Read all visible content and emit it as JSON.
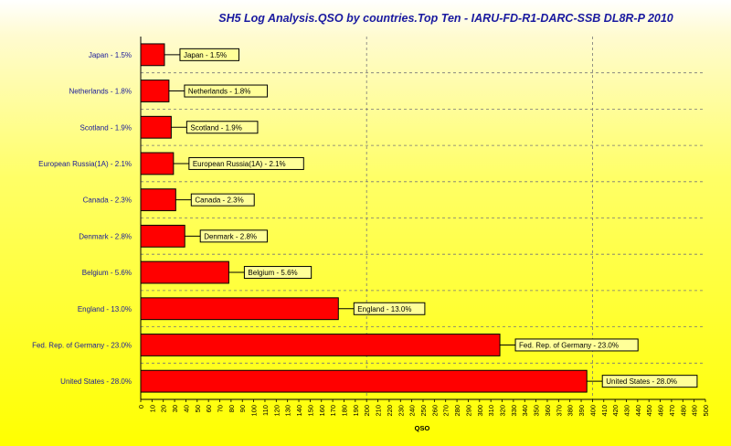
{
  "chart_data": {
    "type": "bar",
    "orientation": "horizontal",
    "title": "SH5 Log Analysis.QSO by countries.Top Ten  - IARU-FD-R1-DARC-SSB DL8R-P 2010",
    "xlabel": "QSO",
    "ylabel": "",
    "xlim": [
      0,
      500
    ],
    "xtick_step": 10,
    "grid": true,
    "bar_color": "#ff0000",
    "label_box_color": "#ffff99",
    "categories": [
      "Japan  - 1.5%",
      "Netherlands  - 1.8%",
      "Scotland  - 1.9%",
      "European Russia(1A)  - 2.1%",
      "Canada  - 2.3%",
      "Denmark  - 2.8%",
      "Belgium  - 5.6%",
      "England  - 13.0%",
      "Fed. Rep. of Germany  - 23.0%",
      "United States  - 28.0%"
    ],
    "values": [
      21,
      25,
      27,
      29,
      31,
      39,
      78,
      175,
      318,
      395
    ]
  }
}
